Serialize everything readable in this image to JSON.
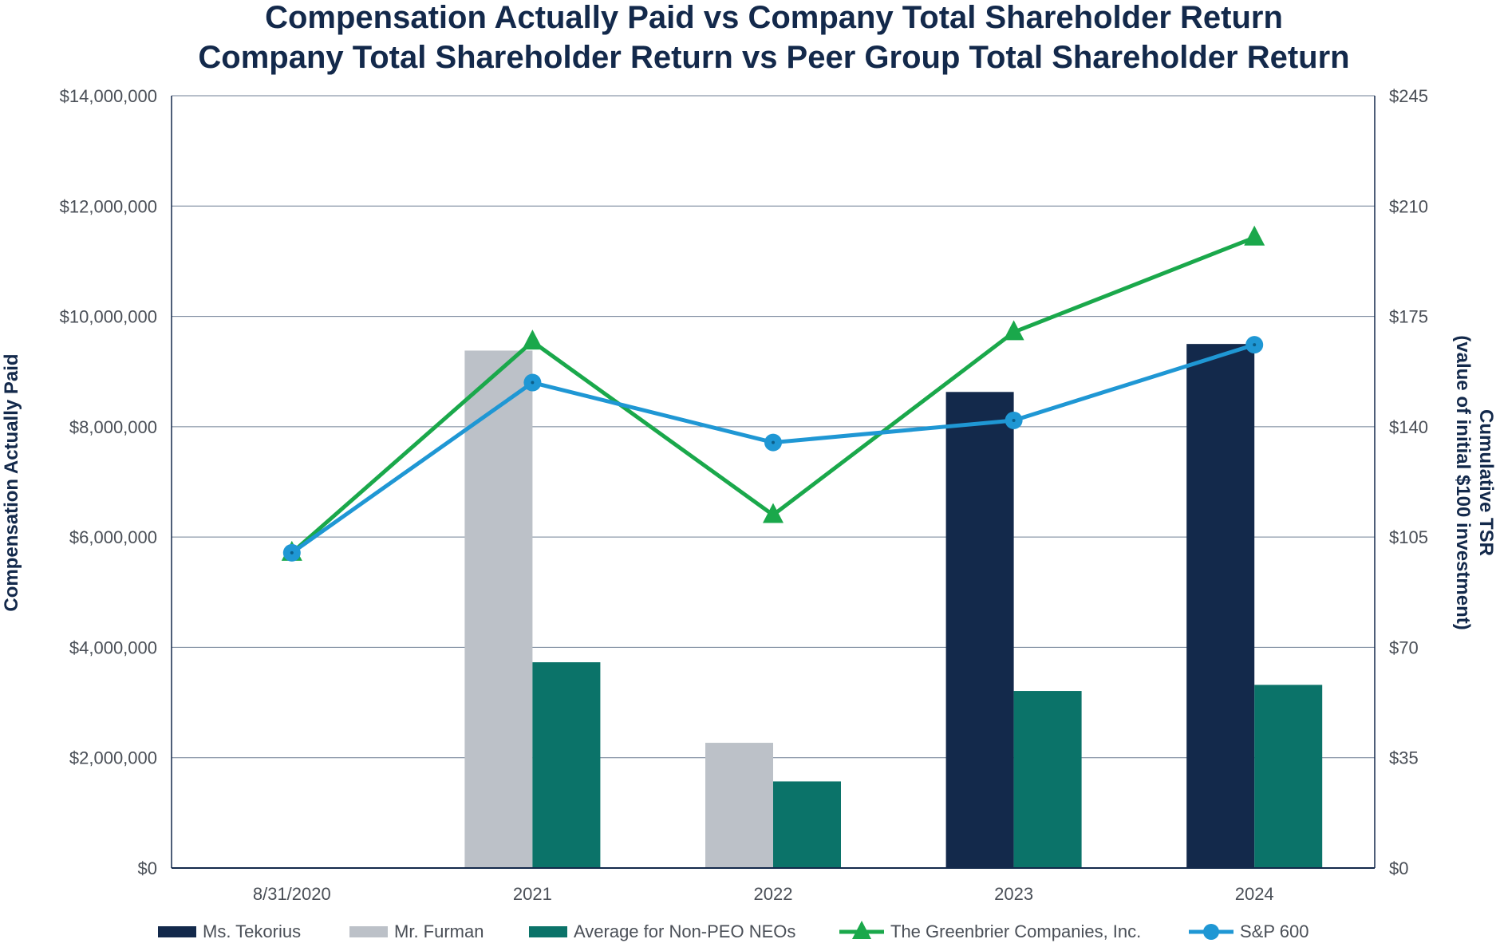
{
  "chart_data": {
    "type": "bar",
    "title_lines": [
      "Compensation Actually Paid vs Company Total Shareholder Return",
      "Company Total Shareholder Return vs Peer Group Total Shareholder Return"
    ],
    "categories": [
      "8/31/2020",
      "2021",
      "2022",
      "2023",
      "2024"
    ],
    "y_left": {
      "label": "Compensation Actually Paid",
      "min": 0,
      "max": 14000000,
      "ticks": [
        0,
        2000000,
        4000000,
        6000000,
        8000000,
        10000000,
        12000000,
        14000000
      ],
      "tick_labels": [
        "$0",
        "$2,000,000",
        "$4,000,000",
        "$6,000,000",
        "$8,000,000",
        "$10,000,000",
        "$12,000,000",
        "$14,000,000"
      ]
    },
    "y_right": {
      "label_lines": [
        "Cumulative TSR",
        "(value of initial $100 investment)"
      ],
      "min": 0,
      "max": 245,
      "ticks": [
        0,
        35,
        70,
        105,
        140,
        175,
        210,
        245
      ],
      "tick_labels": [
        "$0",
        "$35",
        "$70",
        "$105",
        "$140",
        "$175",
        "$210",
        "$245"
      ]
    },
    "bar_series": [
      {
        "name": "Ms. Tekorius",
        "color": "#13294b",
        "values": [
          null,
          null,
          null,
          8630000,
          9500000
        ]
      },
      {
        "name": "Mr. Furman",
        "color": "#bcc1c8",
        "values": [
          null,
          9380000,
          2270000,
          null,
          null
        ]
      },
      {
        "name": "Average for Non-PEO NEOs",
        "color": "#0b7369",
        "values": [
          null,
          3730000,
          1570000,
          3210000,
          3320000
        ]
      }
    ],
    "line_series": [
      {
        "name": "The Greenbrier Companies, Inc.",
        "color": "#1aa84b",
        "marker": "triangle",
        "values": [
          100,
          167,
          112,
          170,
          200
        ]
      },
      {
        "name": "S&P 600",
        "color": "#1f97d4",
        "marker": "circle",
        "values": [
          100,
          154,
          135,
          142,
          166
        ]
      }
    ],
    "grid": true,
    "legend_position": "bottom"
  }
}
